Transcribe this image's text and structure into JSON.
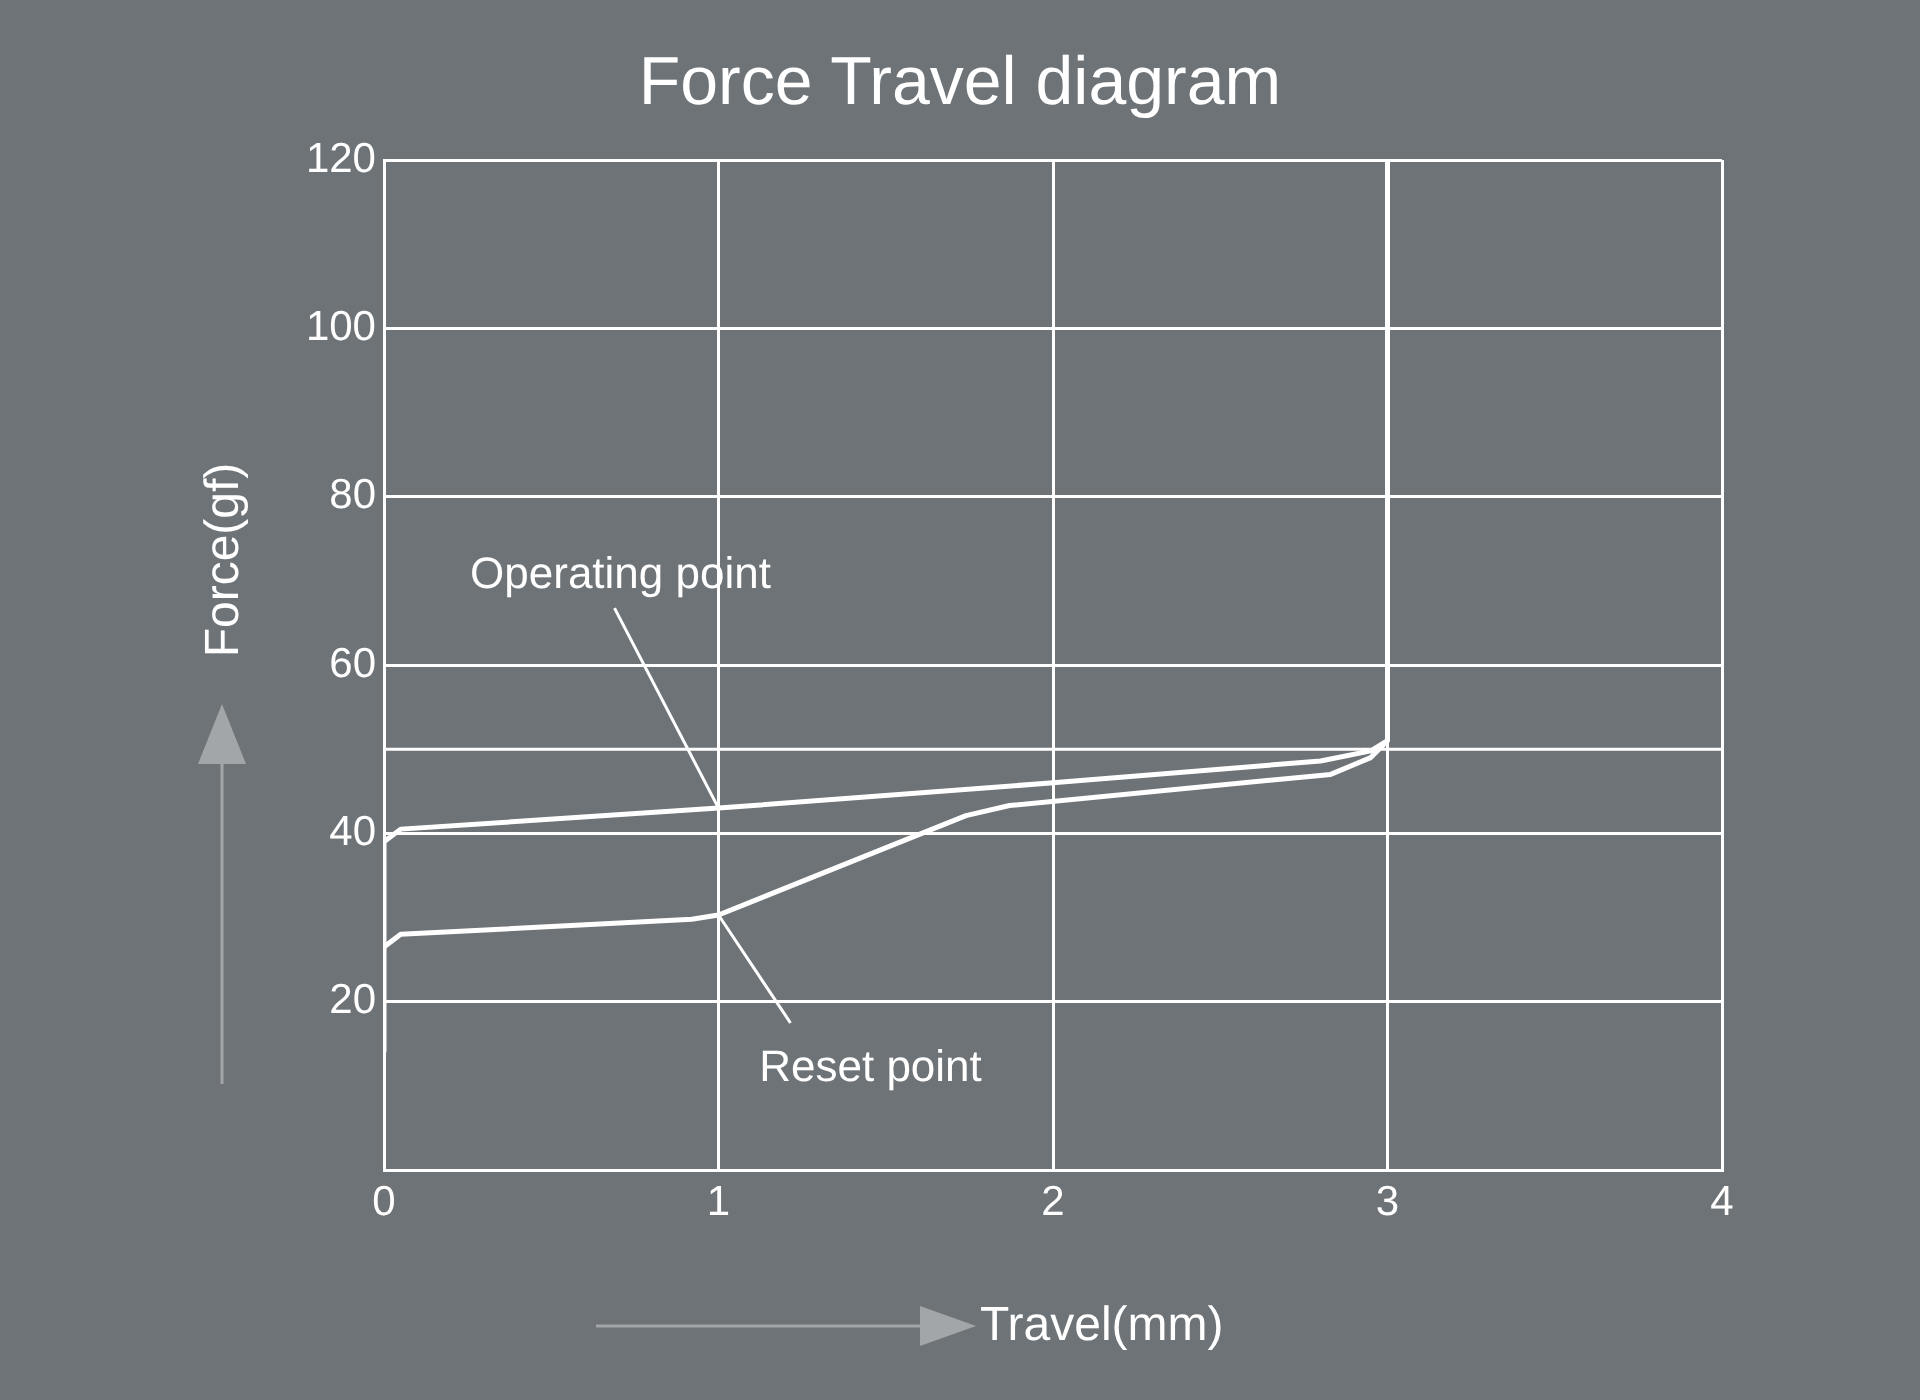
{
  "chart_data": {
    "type": "line",
    "title": "Force Travel diagram",
    "xlabel": "Travel(mm)",
    "ylabel": "Force(gf)",
    "xlim": [
      0,
      4
    ],
    "xticks": [
      0,
      1,
      2,
      3,
      4
    ],
    "ylim": [
      0,
      120
    ],
    "yticks": [
      {
        "value": 0,
        "label": null
      },
      20,
      40,
      60,
      80,
      100,
      120
    ],
    "grid": true,
    "legend": false,
    "marker": "none",
    "line_style": "solid",
    "series": [
      {
        "color": "#ffffff",
        "x": [
          0,
          0,
          0.05,
          1,
          2,
          2.8,
          2.95,
          3,
          3
        ],
        "values": [
          14,
          39,
          40.5,
          43,
          46,
          48.6,
          49.8,
          51,
          120
        ]
      },
      {
        "color": "#ffffff",
        "x": [
          0,
          0.05,
          0.92,
          1,
          1.74,
          1.87,
          2.83,
          2.95,
          3
        ],
        "values": [
          26.5,
          28,
          29.8,
          30.3,
          42.1,
          43.3,
          47,
          49,
          51
        ]
      }
    ],
    "ref_lines": [
      {
        "axis": "y",
        "value": 50,
        "color": "#ffffff"
      }
    ],
    "annotations": [
      {
        "text": "Operating point",
        "x": 1,
        "y": 43
      },
      {
        "text": "Reset point",
        "x": 1,
        "y": 30.3
      }
    ]
  }
}
